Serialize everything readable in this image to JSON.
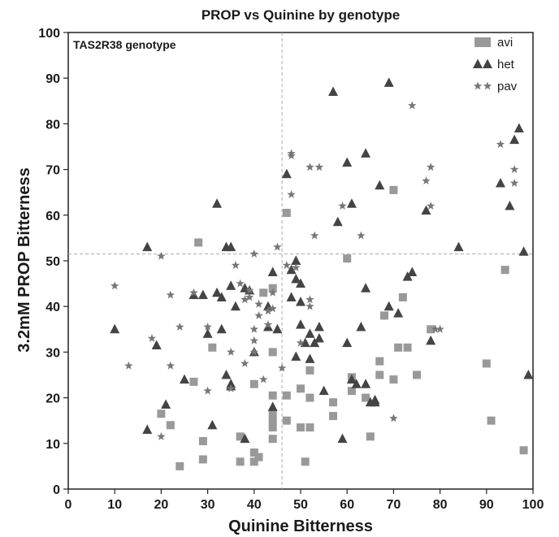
{
  "chart_data": {
    "type": "scatter",
    "title": "PROP vs Quinine by genotype",
    "xlabel": "Quinine Bitterness",
    "ylabel": "3.2mM PROP Bitterness",
    "xlim": [
      0,
      100
    ],
    "ylim": [
      0,
      100
    ],
    "xticks": [
      0,
      10,
      20,
      30,
      40,
      50,
      60,
      70,
      80,
      90,
      100
    ],
    "yticks": [
      0,
      10,
      20,
      30,
      40,
      50,
      60,
      70,
      80,
      90,
      100
    ],
    "annotation": "TAS2R38 genotype",
    "legend_position": "top-right",
    "reference_lines": {
      "x": 46,
      "y": 51.5
    },
    "series": [
      {
        "name": "avi",
        "marker": "square",
        "color": "#999999",
        "points": [
          [
            24,
            5
          ],
          [
            29,
            10.5
          ],
          [
            29,
            6.5
          ],
          [
            22,
            14
          ],
          [
            20,
            16.5
          ],
          [
            27,
            23.5
          ],
          [
            28,
            54
          ],
          [
            31,
            31
          ],
          [
            37,
            11.5
          ],
          [
            37,
            6
          ],
          [
            40,
            6
          ],
          [
            40,
            8
          ],
          [
            41,
            7
          ],
          [
            40,
            23
          ],
          [
            44,
            11
          ],
          [
            44,
            13.5
          ],
          [
            44,
            15
          ],
          [
            44,
            16.5
          ],
          [
            44,
            20.5
          ],
          [
            44,
            30
          ],
          [
            44,
            44
          ],
          [
            42,
            43
          ],
          [
            47,
            60.5
          ],
          [
            47,
            20.5
          ],
          [
            47,
            15
          ],
          [
            50,
            13.5
          ],
          [
            50,
            22
          ],
          [
            51,
            6
          ],
          [
            52,
            13.5
          ],
          [
            52,
            26
          ],
          [
            52,
            20
          ],
          [
            57,
            19
          ],
          [
            57,
            16
          ],
          [
            60,
            50.5
          ],
          [
            61,
            24.5
          ],
          [
            61,
            21.5
          ],
          [
            64,
            20
          ],
          [
            65,
            11.5
          ],
          [
            67,
            25
          ],
          [
            67,
            28
          ],
          [
            68,
            38
          ],
          [
            70,
            24
          ],
          [
            70,
            65.5
          ],
          [
            71,
            31
          ],
          [
            72,
            42
          ],
          [
            73,
            31
          ],
          [
            75,
            25
          ],
          [
            78,
            35
          ],
          [
            90,
            27.5
          ],
          [
            91,
            15
          ],
          [
            94,
            48
          ],
          [
            98,
            8.5
          ]
        ]
      },
      {
        "name": "het",
        "marker": "triangle",
        "color": "#444444",
        "points": [
          [
            10,
            35
          ],
          [
            17,
            53
          ],
          [
            17,
            13
          ],
          [
            19,
            31.5
          ],
          [
            21,
            18.5
          ],
          [
            25,
            24
          ],
          [
            27,
            42.5
          ],
          [
            29,
            42.5
          ],
          [
            30,
            34
          ],
          [
            31,
            14
          ],
          [
            32,
            62.5
          ],
          [
            32,
            43
          ],
          [
            33,
            35
          ],
          [
            33,
            42
          ],
          [
            34,
            53
          ],
          [
            34,
            25
          ],
          [
            35,
            53
          ],
          [
            35,
            44.5
          ],
          [
            35,
            22.5
          ],
          [
            35,
            23
          ],
          [
            36,
            40
          ],
          [
            38,
            44
          ],
          [
            38,
            11
          ],
          [
            39,
            43.5
          ],
          [
            40,
            30
          ],
          [
            43,
            40
          ],
          [
            43,
            35.5
          ],
          [
            44,
            47.5
          ],
          [
            44,
            18
          ],
          [
            45,
            35
          ],
          [
            47,
            69
          ],
          [
            48,
            42
          ],
          [
            48,
            48
          ],
          [
            49,
            50
          ],
          [
            49,
            29
          ],
          [
            49,
            46
          ],
          [
            50,
            41
          ],
          [
            50,
            36
          ],
          [
            50,
            45
          ],
          [
            51,
            32
          ],
          [
            52,
            28.5
          ],
          [
            52,
            34
          ],
          [
            53,
            32
          ],
          [
            54,
            33
          ],
          [
            54,
            35.5
          ],
          [
            55,
            21.5
          ],
          [
            57,
            87
          ],
          [
            58,
            58.5
          ],
          [
            59,
            11
          ],
          [
            60,
            71.5
          ],
          [
            60,
            32
          ],
          [
            61,
            62.5
          ],
          [
            61,
            24
          ],
          [
            62,
            23
          ],
          [
            63,
            35.5
          ],
          [
            64,
            73.5
          ],
          [
            64,
            44
          ],
          [
            64,
            23
          ],
          [
            65,
            19
          ],
          [
            66,
            19
          ],
          [
            66,
            19.5
          ],
          [
            67,
            66.5
          ],
          [
            69,
            89
          ],
          [
            69,
            40
          ],
          [
            71,
            38.5
          ],
          [
            73,
            46.5
          ],
          [
            74,
            47.5
          ],
          [
            77,
            61
          ],
          [
            78,
            32.5
          ],
          [
            84,
            53
          ],
          [
            93,
            67
          ],
          [
            95,
            62
          ],
          [
            96,
            76.5
          ],
          [
            97,
            79
          ],
          [
            98,
            52
          ],
          [
            99,
            25
          ]
        ]
      },
      {
        "name": "pav",
        "marker": "star",
        "color": "#777777",
        "points": [
          [
            10,
            44.5
          ],
          [
            13,
            27
          ],
          [
            18,
            33
          ],
          [
            20,
            51
          ],
          [
            20,
            11.5
          ],
          [
            22,
            27
          ],
          [
            22,
            42.5
          ],
          [
            24,
            35.5
          ],
          [
            27,
            43
          ],
          [
            30,
            21.5
          ],
          [
            30,
            35.5
          ],
          [
            35,
            22
          ],
          [
            35,
            30
          ],
          [
            36,
            49
          ],
          [
            37,
            45
          ],
          [
            38,
            41.5
          ],
          [
            38,
            27.5
          ],
          [
            39,
            43.5
          ],
          [
            39,
            42
          ],
          [
            40,
            30
          ],
          [
            40,
            51.5
          ],
          [
            40,
            35
          ],
          [
            40,
            32.5
          ],
          [
            41,
            38
          ],
          [
            41,
            40.5
          ],
          [
            42,
            24
          ],
          [
            43,
            39
          ],
          [
            43,
            36
          ],
          [
            44,
            43
          ],
          [
            44,
            39.5
          ],
          [
            45,
            53
          ],
          [
            46,
            26.5
          ],
          [
            47,
            49
          ],
          [
            48,
            73
          ],
          [
            48,
            73.5
          ],
          [
            48,
            64.5
          ],
          [
            49,
            48.5
          ],
          [
            50,
            32
          ],
          [
            52,
            41.5
          ],
          [
            52,
            40
          ],
          [
            52,
            70.5
          ],
          [
            53,
            55.5
          ],
          [
            54,
            70.5
          ],
          [
            59,
            62
          ],
          [
            63,
            55.5
          ],
          [
            70,
            15.5
          ],
          [
            74,
            84
          ],
          [
            77,
            67.5
          ],
          [
            78,
            70.5
          ],
          [
            78,
            62
          ],
          [
            79,
            35
          ],
          [
            80,
            35
          ],
          [
            93,
            75.5
          ],
          [
            96,
            70
          ],
          [
            96,
            67
          ]
        ]
      }
    ]
  }
}
